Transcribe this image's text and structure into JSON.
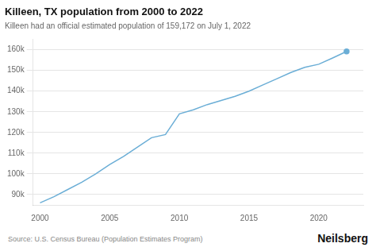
{
  "chart_data": {
    "type": "line",
    "title": "Killeen, TX population from 2000 to 2022",
    "subtitle": "Killeen had an official estimated population of 159,172 on July 1, 2022",
    "annotations": [
      "Source: U.S. Census Bureau (Population Estimates Program)",
      "Neilsberg"
    ],
    "x": [
      2000,
      2001,
      2002,
      2003,
      2004,
      2005,
      2006,
      2007,
      2008,
      2009,
      2010,
      2011,
      2012,
      2013,
      2014,
      2015,
      2016,
      2017,
      2018,
      2019,
      2020,
      2021,
      2022
    ],
    "values": [
      86000,
      89000,
      92500,
      96000,
      100000,
      104500,
      108500,
      113000,
      117500,
      119000,
      129000,
      131000,
      133500,
      135500,
      137500,
      140000,
      143000,
      146000,
      149000,
      151500,
      153000,
      156000,
      159172
    ],
    "color": "#6baed6",
    "xlim": [
      1999.5,
      2023.2
    ],
    "xticks": [
      2000,
      2005,
      2010,
      2015,
      2020
    ],
    "ylim": [
      85000,
      165000
    ],
    "yticks": [
      {
        "value": 90000,
        "label": "90k"
      },
      {
        "value": 100000,
        "label": "100k"
      },
      {
        "value": 110000,
        "label": "110k"
      },
      {
        "value": 120000,
        "label": "120k"
      },
      {
        "value": 130000,
        "label": "130k"
      },
      {
        "value": 140000,
        "label": "140k"
      },
      {
        "value": 150000,
        "label": "150k"
      },
      {
        "value": 160000,
        "label": "160k"
      }
    ],
    "grid": true
  }
}
